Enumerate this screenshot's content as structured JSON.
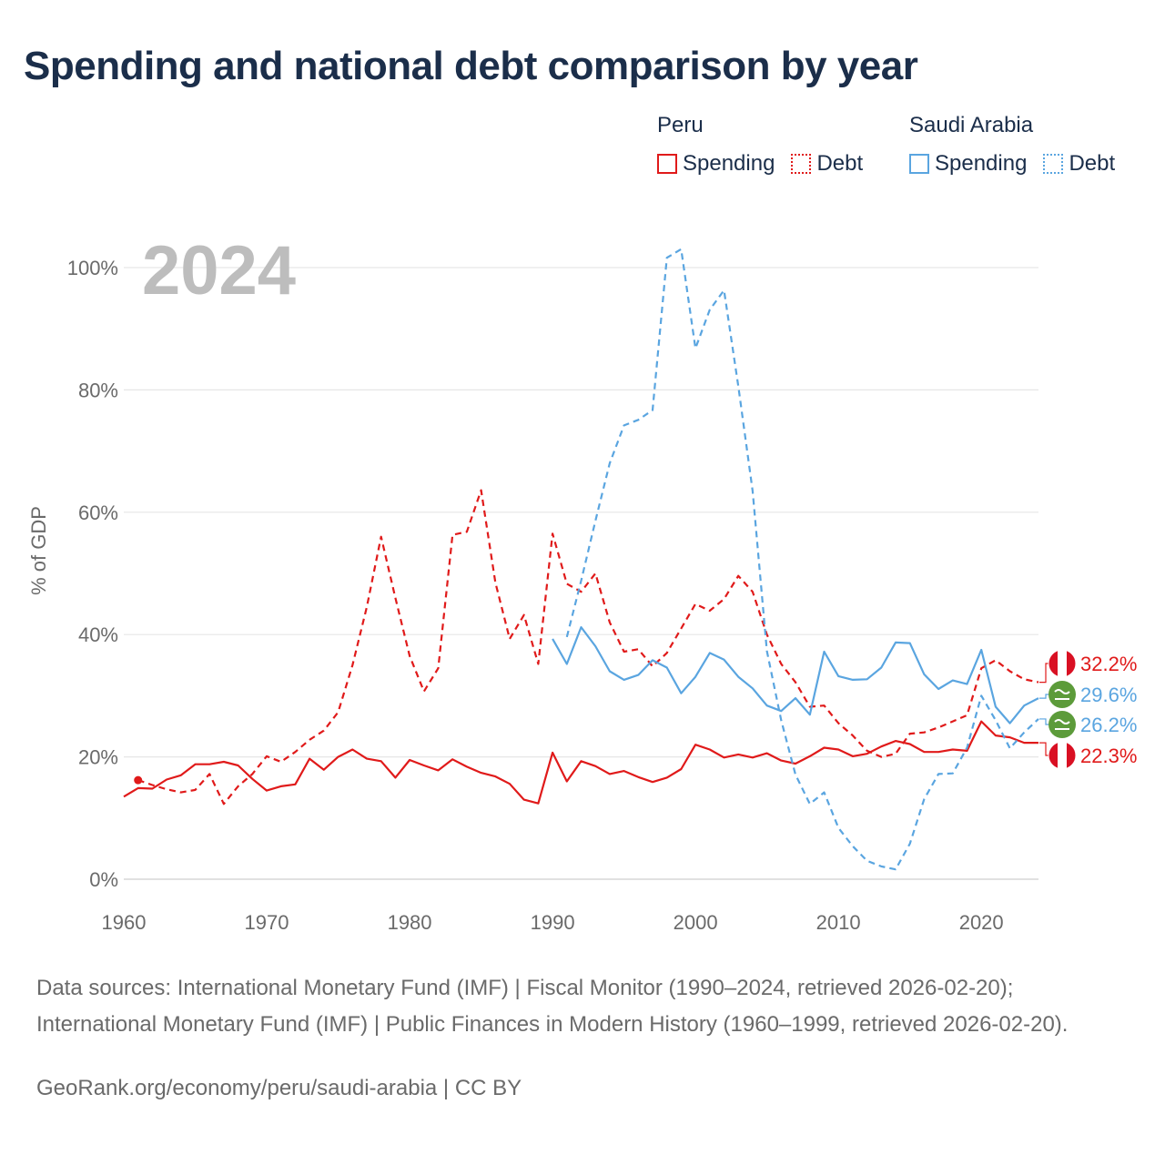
{
  "title": "Spending and national debt comparison by year",
  "legend": {
    "groups": [
      {
        "name": "Peru",
        "spending_label": "Spending",
        "debt_label": "Debt",
        "color": "#e01a1a"
      },
      {
        "name": "Saudi Arabia",
        "spending_label": "Spending",
        "debt_label": "Debt",
        "color": "#5aa5e0"
      }
    ]
  },
  "sources": "Data sources: International Monetary Fund (IMF) | Fiscal Monitor (1990–2024, retrieved 2026-02-20); International Monetary Fund (IMF) | Public Finances in Modern History (1960–1999, retrieved 2026-02-20).",
  "credit": "GeoRank.org/economy/peru/saudi-arabia | CC BY",
  "chart_data": {
    "type": "line",
    "year_label": "2024",
    "ylabel": "% of GDP",
    "xlim": [
      1960,
      2024
    ],
    "ylim": [
      0,
      100
    ],
    "x_ticks": [
      1960,
      1970,
      1980,
      1990,
      2000,
      2010,
      2020
    ],
    "y_ticks": [
      0,
      20,
      40,
      60,
      80,
      100
    ],
    "y_tick_labels": [
      "0%",
      "20%",
      "40%",
      "60%",
      "80%",
      "100%"
    ],
    "series": [
      {
        "name": "Peru Spending",
        "country": "Peru",
        "style": "solid",
        "color": "#e01a1a",
        "end_label": "22.3%",
        "x": [
          1960,
          1961,
          1962,
          1963,
          1964,
          1965,
          1966,
          1967,
          1968,
          1969,
          1970,
          1971,
          1972,
          1973,
          1974,
          1975,
          1976,
          1977,
          1978,
          1979,
          1980,
          1981,
          1982,
          1983,
          1984,
          1985,
          1986,
          1987,
          1988,
          1989,
          1990,
          1991,
          1992,
          1993,
          1994,
          1995,
          1996,
          1997,
          1998,
          1999,
          2000,
          2001,
          2002,
          2003,
          2004,
          2005,
          2006,
          2007,
          2008,
          2009,
          2010,
          2011,
          2012,
          2013,
          2014,
          2015,
          2016,
          2017,
          2018,
          2019,
          2020,
          2021,
          2022,
          2023,
          2024
        ],
        "values": [
          13.5,
          14.9,
          14.8,
          16.3,
          17.0,
          18.8,
          18.8,
          19.2,
          18.6,
          16.4,
          14.5,
          15.2,
          15.5,
          19.7,
          17.9,
          20.0,
          21.2,
          19.7,
          19.3,
          16.6,
          19.5,
          18.6,
          17.8,
          19.6,
          18.4,
          17.4,
          16.8,
          15.6,
          13.0,
          12.4,
          20.7,
          16.0,
          19.3,
          18.5,
          17.2,
          17.7,
          16.7,
          15.9,
          16.6,
          18.0,
          22.0,
          21.2,
          19.9,
          20.4,
          19.9,
          20.6,
          19.4,
          18.9,
          20.1,
          21.5,
          21.2,
          20.1,
          20.5,
          21.7,
          22.6,
          22.1,
          20.8,
          20.8,
          21.2,
          21.0,
          25.8,
          23.5,
          23.2,
          22.3,
          22.3
        ]
      },
      {
        "name": "Peru Debt",
        "country": "Peru",
        "style": "dashed",
        "color": "#e01a1a",
        "end_label": "32.2%",
        "x": [
          1961,
          1962,
          1963,
          1964,
          1965,
          1966,
          1967,
          1968,
          1969,
          1970,
          1971,
          1972,
          1973,
          1974,
          1975,
          1976,
          1977,
          1978,
          1979,
          1980,
          1981,
          1982,
          1983,
          1984,
          1985,
          1986,
          1987,
          1988,
          1989,
          1990,
          1991,
          1992,
          1993,
          1994,
          1995,
          1996,
          1997,
          1998,
          1999,
          2000,
          2001,
          2002,
          2003,
          2004,
          2005,
          2006,
          2007,
          2008,
          2009,
          2010,
          2011,
          2012,
          2013,
          2014,
          2015,
          2016,
          2017,
          2018,
          2019,
          2020,
          2021,
          2022,
          2023,
          2024
        ],
        "values": [
          16.2,
          15.4,
          14.7,
          14.2,
          14.6,
          17.2,
          12.3,
          15.2,
          17.2,
          20.1,
          19.2,
          20.8,
          22.8,
          24.3,
          27.3,
          35.0,
          44.5,
          56.0,
          46.0,
          36.5,
          30.7,
          34.5,
          56.3,
          56.8,
          63.6,
          48.5,
          39.3,
          43.2,
          35.2,
          56.5,
          48.3,
          47.0,
          50.0,
          42.0,
          37.2,
          37.6,
          34.8,
          37.0,
          41.0,
          45.0,
          43.9,
          45.8,
          49.6,
          47.0,
          40.0,
          35.2,
          32.2,
          28.2,
          28.4,
          25.5,
          23.5,
          21.0,
          20.0,
          20.5,
          23.8,
          24.0,
          24.8,
          25.8,
          26.8,
          34.5,
          35.8,
          34.0,
          32.7,
          32.2
        ]
      },
      {
        "name": "Saudi Arabia Spending",
        "country": "Saudi Arabia",
        "style": "solid",
        "color": "#5aa5e0",
        "end_label": "29.6%",
        "x": [
          1990,
          1991,
          1992,
          1993,
          1994,
          1995,
          1996,
          1997,
          1998,
          1999,
          2000,
          2001,
          2002,
          2003,
          2004,
          2005,
          2006,
          2007,
          2008,
          2009,
          2010,
          2011,
          2012,
          2013,
          2014,
          2015,
          2016,
          2017,
          2018,
          2019,
          2020,
          2021,
          2022,
          2023,
          2024
        ],
        "values": [
          39.3,
          35.2,
          41.2,
          38.1,
          34.0,
          32.6,
          33.4,
          35.8,
          34.6,
          30.4,
          33.1,
          37.0,
          35.9,
          33.1,
          31.2,
          28.4,
          27.5,
          29.6,
          26.9,
          37.2,
          33.2,
          32.6,
          32.7,
          34.6,
          38.7,
          38.6,
          33.5,
          31.1,
          32.5,
          31.9,
          37.5,
          28.2,
          25.5,
          28.4,
          29.6
        ]
      },
      {
        "name": "Saudi Arabia Debt",
        "country": "Saudi Arabia",
        "style": "dashed",
        "color": "#5aa5e0",
        "end_label": "26.2%",
        "x": [
          1991,
          1992,
          1993,
          1994,
          1995,
          1996,
          1997,
          1998,
          1999,
          2000,
          2001,
          2002,
          2003,
          2004,
          2005,
          2006,
          2007,
          2008,
          2009,
          2010,
          2011,
          2012,
          2013,
          2014,
          2015,
          2016,
          2017,
          2018,
          2019,
          2020,
          2021,
          2022,
          2023,
          2024
        ],
        "values": [
          39.6,
          48.8,
          58.6,
          68.0,
          74.2,
          75.1,
          76.7,
          101.6,
          103.0,
          86.8,
          93.1,
          96.3,
          80.6,
          63.5,
          37.3,
          26.0,
          17.1,
          12.3,
          14.2,
          8.4,
          5.4,
          3.0,
          2.1,
          1.6,
          5.8,
          13.1,
          17.2,
          17.3,
          21.5,
          30.0,
          26.0,
          21.4,
          24.0,
          26.2
        ]
      }
    ]
  }
}
